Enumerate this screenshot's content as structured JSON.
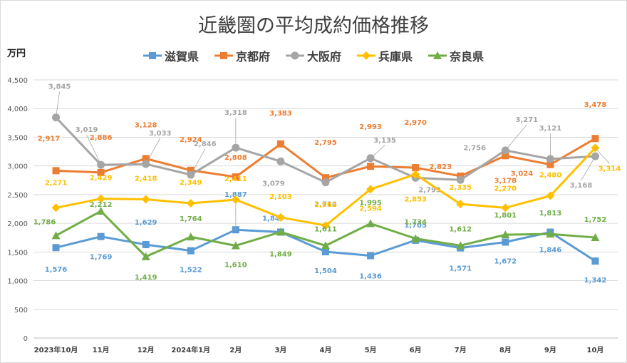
{
  "chart_data": {
    "type": "line",
    "title": "近畿圏の平均成約価格推移",
    "ylabel": "万円",
    "xlabel": "",
    "ylim": [
      0,
      4500
    ],
    "yticks": [
      0,
      500,
      1000,
      1500,
      2000,
      2500,
      3000,
      3500,
      4000,
      4500
    ],
    "ytick_labels": [
      "0",
      "500",
      "1,000",
      "1,500",
      "2,000",
      "2,500",
      "3,000",
      "3,500",
      "4,000",
      "4,500"
    ],
    "grid": true,
    "legend_position": "top",
    "categories": [
      "2023年10月",
      "11月",
      "12月",
      "2024年1月",
      "2月",
      "3月",
      "4月",
      "5月",
      "6月",
      "7月",
      "8月",
      "9月",
      "10月"
    ],
    "series": [
      {
        "name": "滋賀県",
        "color": "#5b9bd5",
        "marker": "square",
        "values": [
          1576,
          1769,
          1629,
          1522,
          1887,
          1847,
          1504,
          1436,
          1705,
          1571,
          1672,
          1846,
          1342
        ],
        "labels": [
          "1,576",
          "1,769",
          "1,629",
          "1,522",
          "1,887",
          "1,847",
          "1,504",
          "1,436",
          "1,705",
          "1,571",
          "1,672",
          "1,846",
          "1,342"
        ]
      },
      {
        "name": "京都府",
        "color": "#ed7d31",
        "marker": "square",
        "values": [
          2917,
          2886,
          3128,
          2924,
          2808,
          3383,
          2795,
          2993,
          2970,
          2823,
          3178,
          3024,
          3478
        ],
        "labels": [
          "2,917",
          "2,886",
          "3,128",
          "2,924",
          "2,808",
          "3,383",
          "2,795",
          "2,993",
          "2,970",
          "2,823",
          "3,178",
          "3,024",
          "3,478"
        ]
      },
      {
        "name": "大阪府",
        "color": "#a5a5a5",
        "marker": "circle",
        "values": [
          3845,
          3019,
          3033,
          2846,
          3318,
          3079,
          2714,
          3135,
          2793,
          2756,
          3271,
          3121,
          3168
        ],
        "labels": [
          "3,845",
          "3,019",
          "3,033",
          "2,846",
          "3,318",
          "3,079",
          "2,714",
          "3,135",
          "2,793",
          "2,756",
          "3,271",
          "3,121",
          "3,168"
        ]
      },
      {
        "name": "兵庫県",
        "color": "#ffc000",
        "marker": "diamond",
        "values": [
          2271,
          2429,
          2418,
          2349,
          2411,
          2103,
          1962,
          2594,
          2853,
          2335,
          2270,
          2480,
          3314
        ],
        "labels": [
          "2,271",
          "2,429",
          "2,418",
          "2,349",
          "2,411",
          "2,103",
          "1,962",
          "2,594",
          "2,853",
          "2,335",
          "2,270",
          "2,480",
          "3,314"
        ]
      },
      {
        "name": "奈良県",
        "color": "#70ad47",
        "marker": "triangle",
        "values": [
          1786,
          2212,
          1419,
          1764,
          1610,
          1849,
          1611,
          1995,
          1734,
          1612,
          1801,
          1813,
          1752
        ],
        "labels": [
          "1,786",
          "2,212",
          "1,419",
          "1,764",
          "1,610",
          "1,849",
          "1,611",
          "1,995",
          "1,734",
          "1,612",
          "1,801",
          "1,813",
          "1,752"
        ]
      }
    ]
  }
}
